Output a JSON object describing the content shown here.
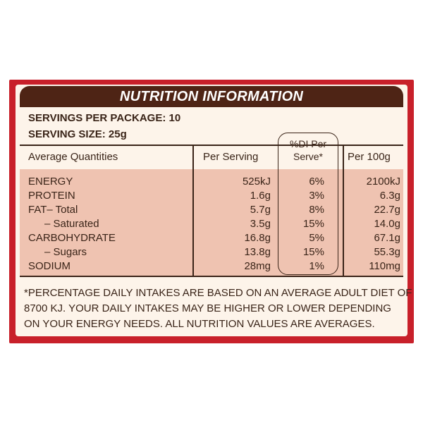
{
  "title": "NUTRITION INFORMATION",
  "servings_per_package": "SERVINGS PER PACKAGE: 10",
  "serving_size": "SERVING SIZE: 25g",
  "headers": {
    "quantities": "Average Quantities",
    "per_serving": "Per Serving",
    "di_line1": "%DI Per",
    "di_line2": "Serve*",
    "per_100g": "Per 100g"
  },
  "rows": [
    {
      "label": "ENERGY",
      "per_serving": "525kJ",
      "di": "6%",
      "per_100g": "2100kJ"
    },
    {
      "label": "PROTEIN",
      "per_serving": "1.6g",
      "di": "3%",
      "per_100g": "6.3g"
    },
    {
      "label": "FAT– Total",
      "per_serving": "5.7g",
      "di": "8%",
      "per_100g": "22.7g"
    },
    {
      "label": "– Saturated",
      "per_serving": "3.5g",
      "di": "15%",
      "per_100g": "14.0g"
    },
    {
      "label": "CARBOHYDRATE",
      "per_serving": "16.8g",
      "di": "5%",
      "per_100g": "67.1g"
    },
    {
      "label": "– Sugars",
      "per_serving": "13.8g",
      "di": "15%",
      "per_100g": "55.3g"
    },
    {
      "label": "SODIUM",
      "per_serving": "28mg",
      "di": "1%",
      "per_100g": "110mg"
    }
  ],
  "footnote": [
    "*PERCENTAGE DAILY INTAKES ARE BASED ON AN AVERAGE ADULT DIET OF",
    "8700 KJ. YOUR DAILY INTAKES MAY BE HIGHER OR LOWER DEPENDING",
    "ON YOUR ENERGY NEEDS. ALL NUTRITION VALUES ARE AVERAGES."
  ],
  "colors": {
    "frame": "#c8202a",
    "title_bar": "#4e2415",
    "background": "#fdf4ea",
    "band": "#efc3b1"
  }
}
